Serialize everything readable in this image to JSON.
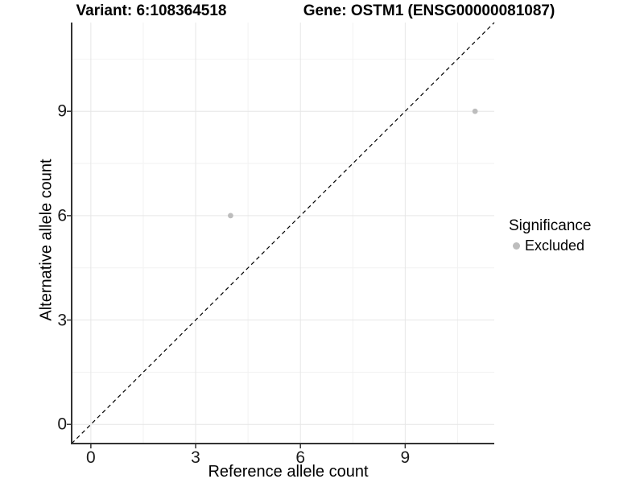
{
  "titles": {
    "variant": "Variant: 6:108364518",
    "gene": "Gene: OSTM1 (ENSG00000081087)"
  },
  "axes": {
    "x": {
      "label": "Reference allele count"
    },
    "y": {
      "label": "Alternative allele count"
    }
  },
  "legend": {
    "title": "Significance",
    "items": [
      {
        "label": "Excluded",
        "color": "#bdbdbd"
      }
    ]
  },
  "style": {
    "point_color": "#bdbdbd",
    "grid_major_color": "#e6e6e6",
    "grid_minor_color": "#f2f2f2",
    "axis_line_color": "#333333",
    "reference_line_color": "#000000",
    "background": "#ffffff"
  },
  "chart_data": {
    "type": "scatter",
    "title": "Variant: 6:108364518 — Gene: OSTM1 (ENSG00000081087)",
    "xlabel": "Reference allele count",
    "ylabel": "Alternative allele count",
    "xlim": [
      -0.55,
      11.55
    ],
    "ylim": [
      -0.55,
      11.55
    ],
    "x_major_ticks": [
      0,
      3,
      6,
      9
    ],
    "y_major_ticks": [
      0,
      3,
      6,
      9
    ],
    "x_minor_ticks": [
      1.5,
      4.5,
      7.5,
      10.5
    ],
    "y_minor_ticks": [
      1.5,
      4.5,
      7.5,
      10.5
    ],
    "grid": true,
    "legend_position": "right",
    "reference_line": {
      "type": "identity",
      "equation": "y = x",
      "style": "dashed",
      "color": "#000000"
    },
    "series": [
      {
        "name": "Excluded",
        "color": "#bdbdbd",
        "points": [
          {
            "x": 4,
            "y": 6
          },
          {
            "x": 11,
            "y": 9
          }
        ]
      }
    ]
  }
}
